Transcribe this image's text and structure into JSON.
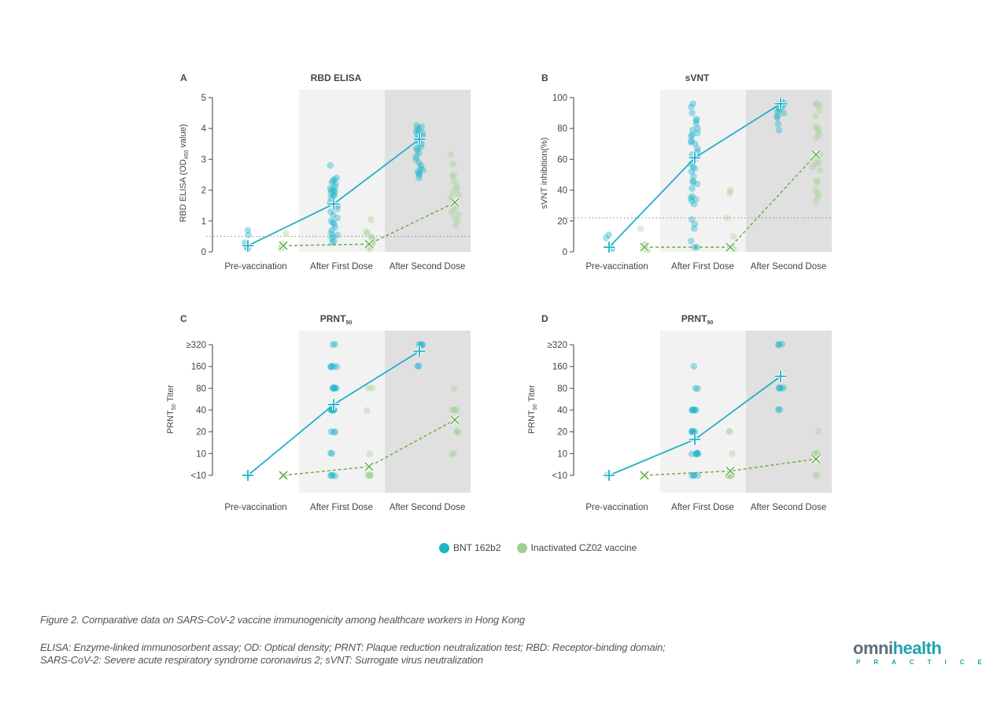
{
  "figure": {
    "caption_title": "Figure 2. Comparative data on SARS-CoV-2 vaccine immunogenicity among healthcare workers in Hong Kong",
    "caption_notes_line1": "ELISA: Enzyme-linked immunosorbent assay; OD: Optical density; PRNT: Plaque reduction neutralization test; RBD: Receptor-binding domain;",
    "caption_notes_line2": "SARS-CoV-2: Severe acute respiratory syndrome coronavirus 2; sVNT: Surrogate virus neutralization"
  },
  "legend": {
    "items": [
      {
        "label": "BNT 162b2",
        "color": "#1fb3cc"
      },
      {
        "label": "Inactivated CZ02 vaccine",
        "color": "#9fd18e"
      }
    ]
  },
  "logo": {
    "part1": "omni",
    "part2": "health",
    "sub": "PRACTICE"
  },
  "colors": {
    "bnt": "#1fb3cc",
    "bnt_line": "#23b0c8",
    "cz02": "#a6d597",
    "cz02_line": "#6ab04c",
    "band1": "#f2f2f2",
    "band2": "#e0e0e0",
    "axis": "#666666",
    "threshold": "#888888"
  },
  "chart_data": [
    {
      "panel": "A",
      "type": "scatter",
      "title": "RBD ELISA",
      "ylabel_main": "RBD ELISA (OD",
      "ylabel_sub": "450",
      "ylabel_tail": " value)",
      "scale": "linear",
      "ylim": [
        0,
        5
      ],
      "yticks": [
        0,
        1,
        2,
        3,
        4,
        5
      ],
      "ytick_labels": [
        "0",
        "1",
        "2",
        "3",
        "4",
        "5"
      ],
      "categories": [
        "Pre-vaccination",
        "After First Dose",
        "After Second Dose"
      ],
      "threshold": 0.5,
      "series": [
        {
          "name": "BNT 162b2",
          "means": [
            0.2,
            1.55,
            3.65
          ],
          "points": [
            [
              0.7,
              0.55,
              0.3,
              0.2,
              0.15,
              0.1
            ],
            [
              2.8,
              2.4,
              2.35,
              2.3,
              2.25,
              2.2,
              2.1,
              2.05,
              2.0,
              2.0,
              1.95,
              1.9,
              1.85,
              1.8,
              1.75,
              1.6,
              1.5,
              1.4,
              1.3,
              1.2,
              1.1,
              1.0,
              0.95,
              0.9,
              0.8,
              0.7,
              0.6,
              0.55,
              0.5,
              0.45,
              0.35,
              0.3
            ],
            [
              4.1,
              4.05,
              4.0,
              3.95,
              3.9,
              3.85,
              3.8,
              3.75,
              3.7,
              3.65,
              3.6,
              3.55,
              3.5,
              3.4,
              3.35,
              3.3,
              3.2,
              3.1,
              3.0,
              2.9,
              2.8,
              2.7,
              2.65,
              2.6,
              2.55,
              2.5,
              2.4
            ]
          ]
        },
        {
          "name": "Inactivated CZ02 vaccine",
          "means": [
            0.2,
            0.25,
            1.6
          ],
          "points": [
            [
              0.6,
              0.25,
              0.2,
              0.15,
              0.1
            ],
            [
              1.05,
              0.65,
              0.6,
              0.5,
              0.45,
              0.4,
              0.3,
              0.25,
              0.2,
              0.15,
              0.1
            ],
            [
              3.15,
              2.85,
              2.5,
              2.45,
              2.3,
              2.15,
              2.05,
              1.95,
              1.85,
              1.75,
              1.6,
              1.5,
              1.4,
              1.3,
              1.2,
              1.1,
              1.0,
              0.85
            ]
          ]
        }
      ]
    },
    {
      "panel": "B",
      "type": "scatter",
      "title": "sVNT",
      "ylabel_main": "sVNT inhibition(%)",
      "ylabel_sub": "",
      "ylabel_tail": "",
      "scale": "linear",
      "ylim": [
        0,
        100
      ],
      "yticks": [
        0,
        20,
        40,
        60,
        80,
        100
      ],
      "ytick_labels": [
        "0",
        "20",
        "40",
        "60",
        "80",
        "100"
      ],
      "categories": [
        "Pre-vaccination",
        "After First Dose",
        "After Second Dose"
      ],
      "threshold": 22,
      "series": [
        {
          "name": "BNT 162b2",
          "means": [
            3,
            61,
            96
          ],
          "points": [
            [
              11,
              9,
              3,
              2
            ],
            [
              96,
              94,
              90,
              86,
              85,
              83,
              80,
              79,
              77,
              76,
              75,
              72,
              71,
              70,
              67,
              65,
              63,
              60,
              57,
              55,
              54,
              52,
              49,
              46,
              45,
              44,
              41,
              36,
              35,
              34,
              33,
              31,
              21,
              18,
              15,
              7,
              3,
              3
            ],
            [
              97,
              96,
              96,
              95,
              94,
              93,
              92,
              91,
              90,
              88,
              87,
              83,
              79
            ]
          ]
        },
        {
          "name": "Inactivated CZ02 vaccine",
          "means": [
            3,
            3,
            63
          ],
          "points": [
            [
              15,
              5,
              4,
              3,
              2,
              1
            ],
            [
              40,
              38,
              22,
              10,
              3,
              3,
              2
            ],
            [
              96,
              96,
              95,
              92,
              88,
              81,
              80,
              78,
              76,
              74,
              63,
              61,
              58,
              57,
              55,
              53,
              46,
              45,
              40,
              38,
              36,
              33
            ]
          ]
        }
      ]
    },
    {
      "panel": "C",
      "type": "scatter",
      "title": "PRNT",
      "title_sub": "50",
      "ylabel_main": "PRNT",
      "ylabel_sub": "50",
      "ylabel_tail": " Titer",
      "scale": "log2",
      "ylim_levels": [
        0,
        6
      ],
      "yticks": [
        0,
        1,
        2,
        3,
        4,
        5,
        6
      ],
      "ytick_labels": [
        "<10",
        "10",
        "20",
        "40",
        "80",
        "160",
        "≥320"
      ],
      "categories": [
        "Pre-vaccination",
        "After First Dose",
        "After Second Dose"
      ],
      "threshold": null,
      "series": [
        {
          "name": "BNT 162b2",
          "means_level": [
            0,
            3.25,
            5.7
          ],
          "points_level": [
            [
              0
            ],
            [
              6,
              6,
              5,
              5,
              5,
              5,
              5,
              4,
              4,
              4,
              4,
              4,
              4,
              3,
              3,
              3,
              3,
              3,
              3,
              3,
              2,
              2,
              2,
              1,
              1,
              0,
              0,
              0,
              0
            ],
            [
              6,
              6,
              6,
              6,
              5,
              5
            ]
          ]
        },
        {
          "name": "Inactivated CZ02 vaccine",
          "means_level": [
            0,
            0.4,
            2.55
          ],
          "points_level": [
            [
              0
            ],
            [
              4,
              4,
              3,
              1,
              0,
              0,
              0,
              0,
              0,
              0
            ],
            [
              4,
              3,
              3,
              3,
              3,
              2,
              2,
              2,
              1,
              1
            ]
          ]
        }
      ]
    },
    {
      "panel": "D",
      "type": "scatter",
      "title": "PRNT",
      "title_sub": "90",
      "ylabel_main": "PRNT",
      "ylabel_sub": "90",
      "ylabel_tail": " Titer",
      "scale": "log2",
      "ylim_levels": [
        0,
        6
      ],
      "yticks": [
        0,
        1,
        2,
        3,
        4,
        5,
        6
      ],
      "ytick_labels": [
        "<10",
        "10",
        "20",
        "40",
        "80",
        "160",
        "≥320"
      ],
      "categories": [
        "Pre-vaccination",
        "After First Dose",
        "After Second Dose"
      ],
      "threshold": null,
      "series": [
        {
          "name": "BNT 162b2",
          "means_level": [
            0,
            1.65,
            4.55
          ],
          "points_level": [
            [
              0
            ],
            [
              5,
              4,
              4,
              3,
              3,
              3,
              3,
              3,
              3,
              2,
              2,
              2,
              2,
              2,
              1,
              1,
              1,
              1,
              1,
              1,
              0,
              0,
              0,
              0
            ],
            [
              6,
              6,
              6,
              4,
              4,
              4,
              4,
              3,
              3
            ]
          ]
        },
        {
          "name": "Inactivated CZ02 vaccine",
          "means_level": [
            0,
            0.2,
            0.75
          ],
          "points_level": [
            [
              0
            ],
            [
              2,
              2,
              1,
              0,
              0,
              0,
              0,
              0,
              0
            ],
            [
              2,
              1,
              1,
              1,
              0,
              0
            ]
          ]
        }
      ]
    }
  ]
}
